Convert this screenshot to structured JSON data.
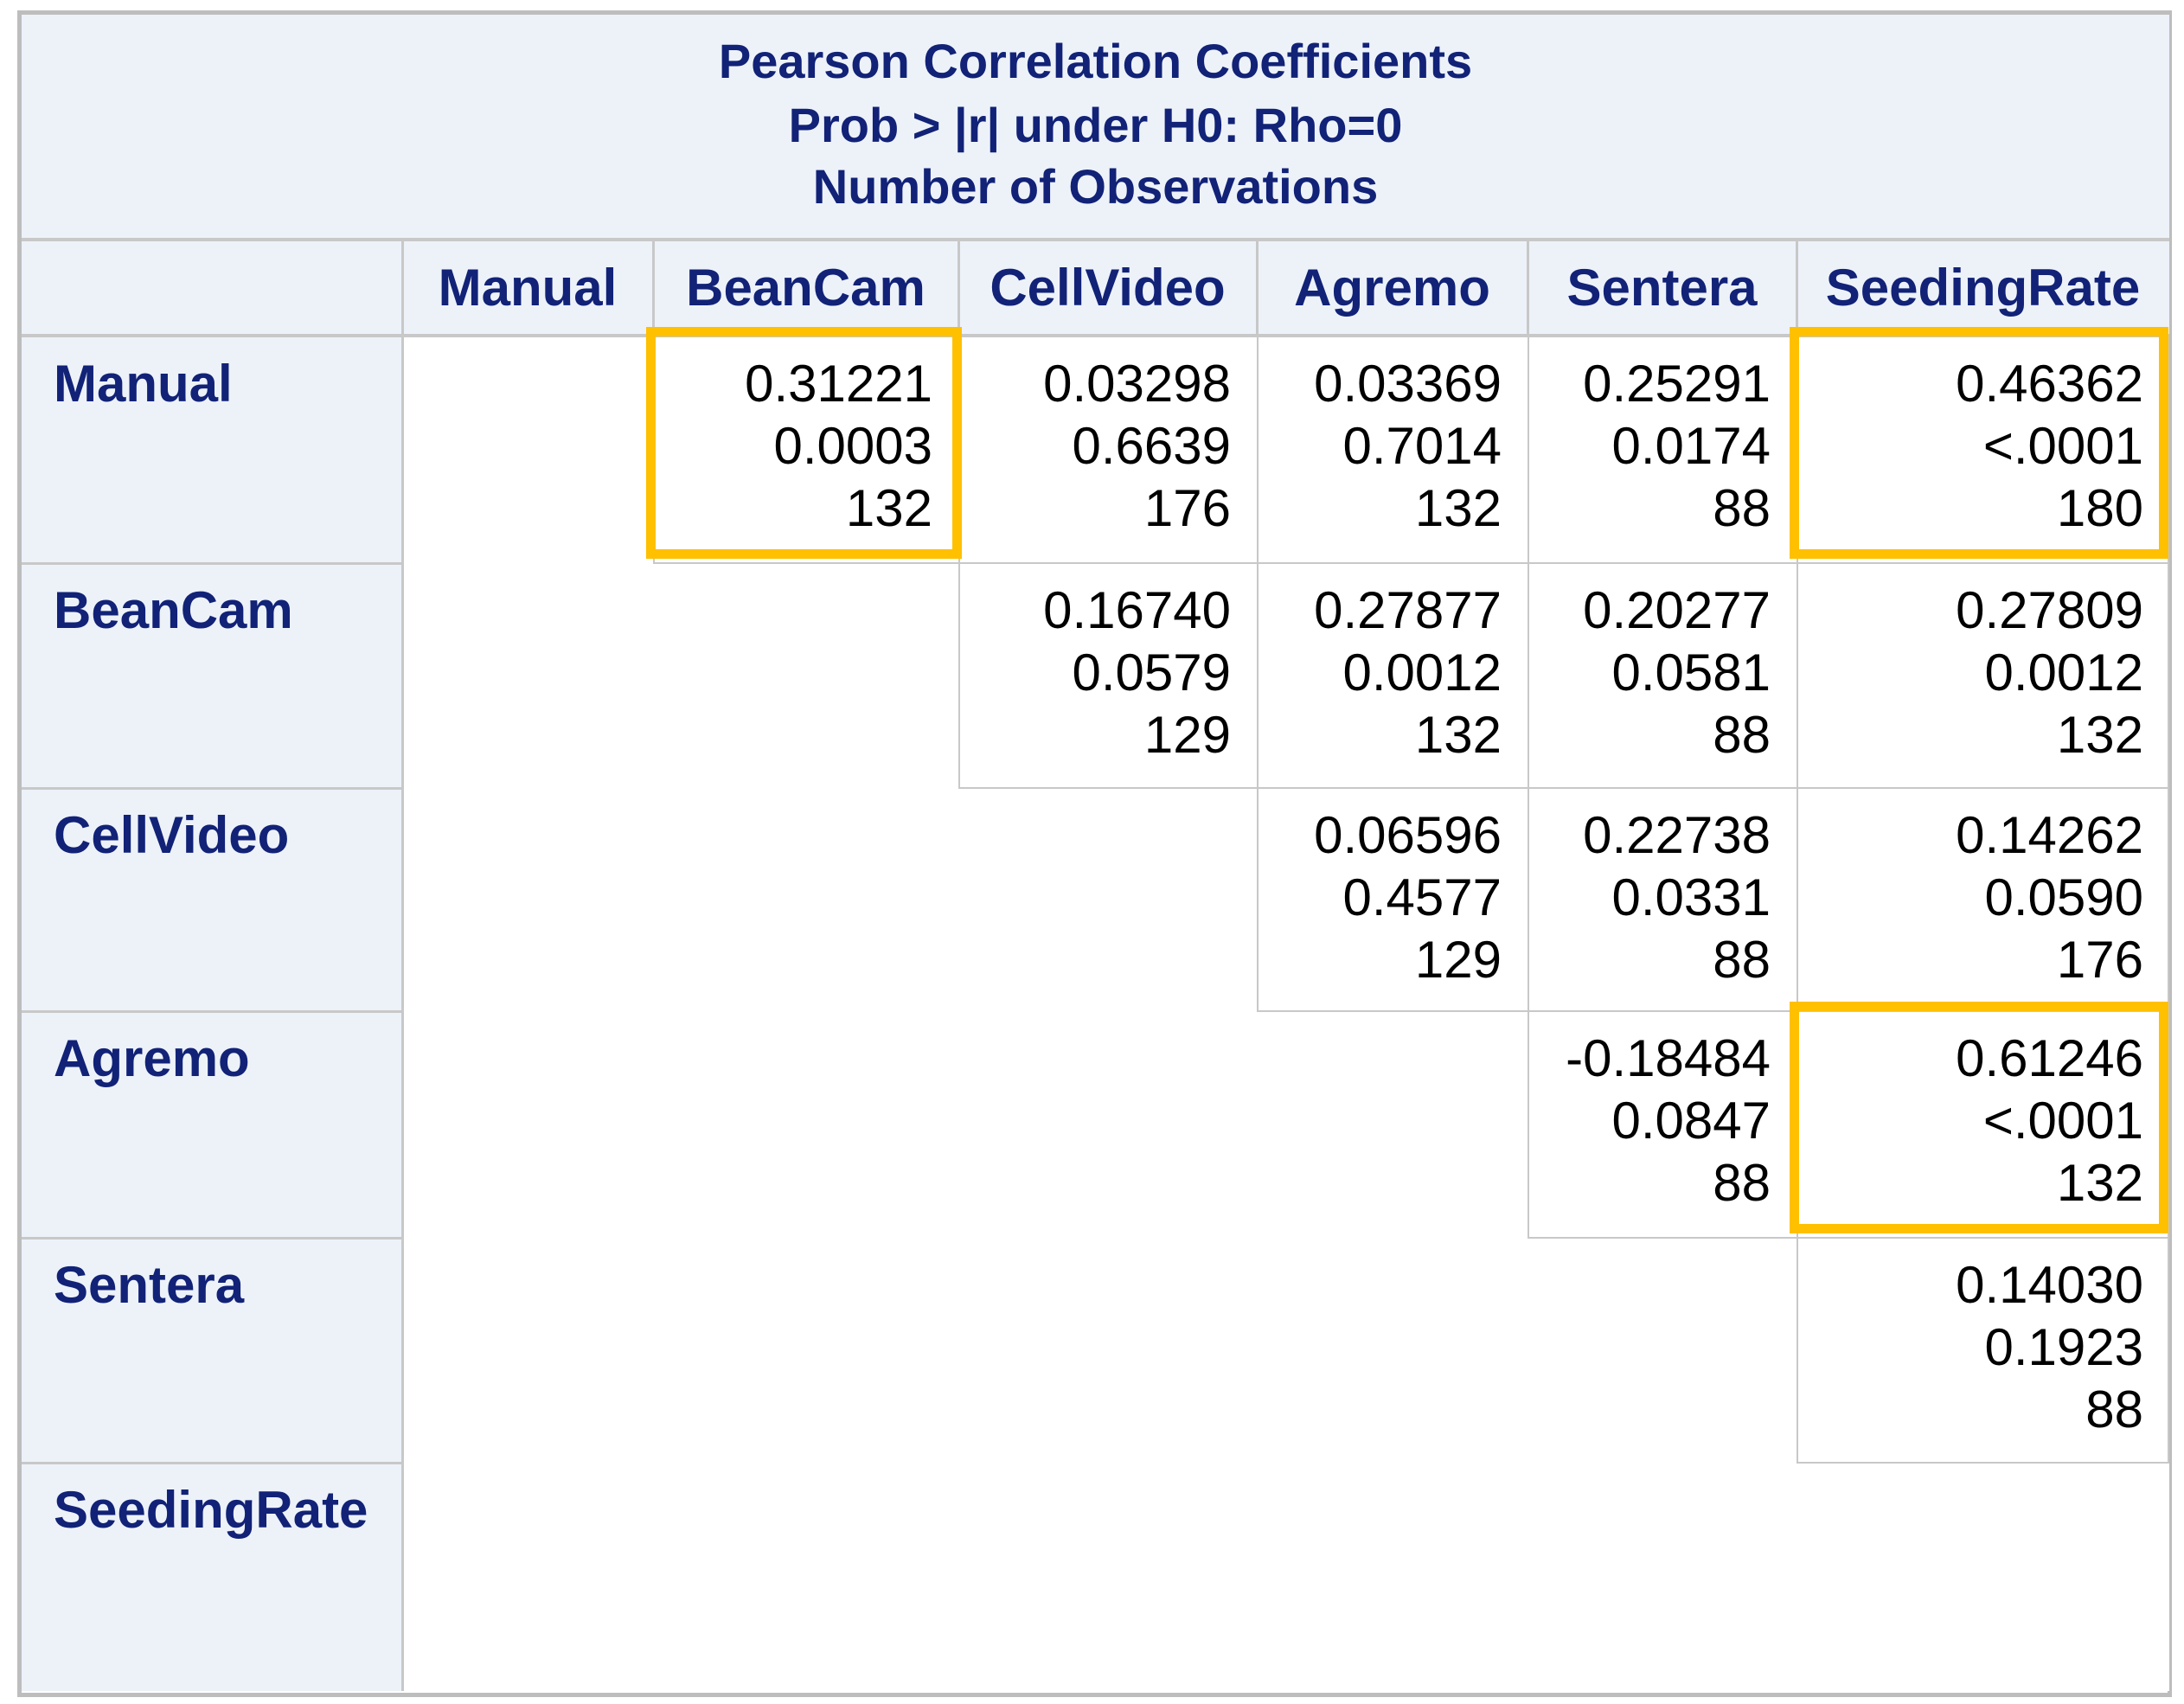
{
  "chart_data": {
    "type": "table",
    "title_lines": [
      "Pearson Correlation Coefficients",
      "Prob > |r| under H0: Rho=0",
      "Number of Observations"
    ],
    "columns": [
      "Manual",
      "BeanCam",
      "CellVideo",
      "Agremo",
      "Sentera",
      "SeedingRate"
    ],
    "rows": [
      {
        "label": "Manual",
        "cells": [
          null,
          {
            "r": "0.31221",
            "p": "0.0003",
            "n": "132",
            "highlight": true
          },
          {
            "r": "0.03298",
            "p": "0.6639",
            "n": "176"
          },
          {
            "r": "0.03369",
            "p": "0.7014",
            "n": "132"
          },
          {
            "r": "0.25291",
            "p": "0.0174",
            "n": "88"
          },
          {
            "r": "0.46362",
            "p": "<.0001",
            "n": "180",
            "highlight": true
          }
        ]
      },
      {
        "label": "BeanCam",
        "cells": [
          null,
          null,
          {
            "r": "0.16740",
            "p": "0.0579",
            "n": "129"
          },
          {
            "r": "0.27877",
            "p": "0.0012",
            "n": "132"
          },
          {
            "r": "0.20277",
            "p": "0.0581",
            "n": "88"
          },
          {
            "r": "0.27809",
            "p": "0.0012",
            "n": "132"
          }
        ]
      },
      {
        "label": "CellVideo",
        "cells": [
          null,
          null,
          null,
          {
            "r": "0.06596",
            "p": "0.4577",
            "n": "129"
          },
          {
            "r": "0.22738",
            "p": "0.0331",
            "n": "88"
          },
          {
            "r": "0.14262",
            "p": "0.0590",
            "n": "176"
          }
        ]
      },
      {
        "label": "Agremo",
        "cells": [
          null,
          null,
          null,
          null,
          {
            "r": "-0.18484",
            "p": "0.0847",
            "n": "88"
          },
          {
            "r": "0.61246",
            "p": "<.0001",
            "n": "132",
            "highlight": true
          }
        ]
      },
      {
        "label": "Sentera",
        "cells": [
          null,
          null,
          null,
          null,
          null,
          {
            "r": "0.14030",
            "p": "0.1923",
            "n": "88"
          }
        ]
      },
      {
        "label": "SeedingRate",
        "cells": [
          null,
          null,
          null,
          null,
          null,
          null
        ]
      }
    ],
    "highlight_color": "#ffc000",
    "header_color": "#edf2f9",
    "header_text_color": "#112277"
  }
}
